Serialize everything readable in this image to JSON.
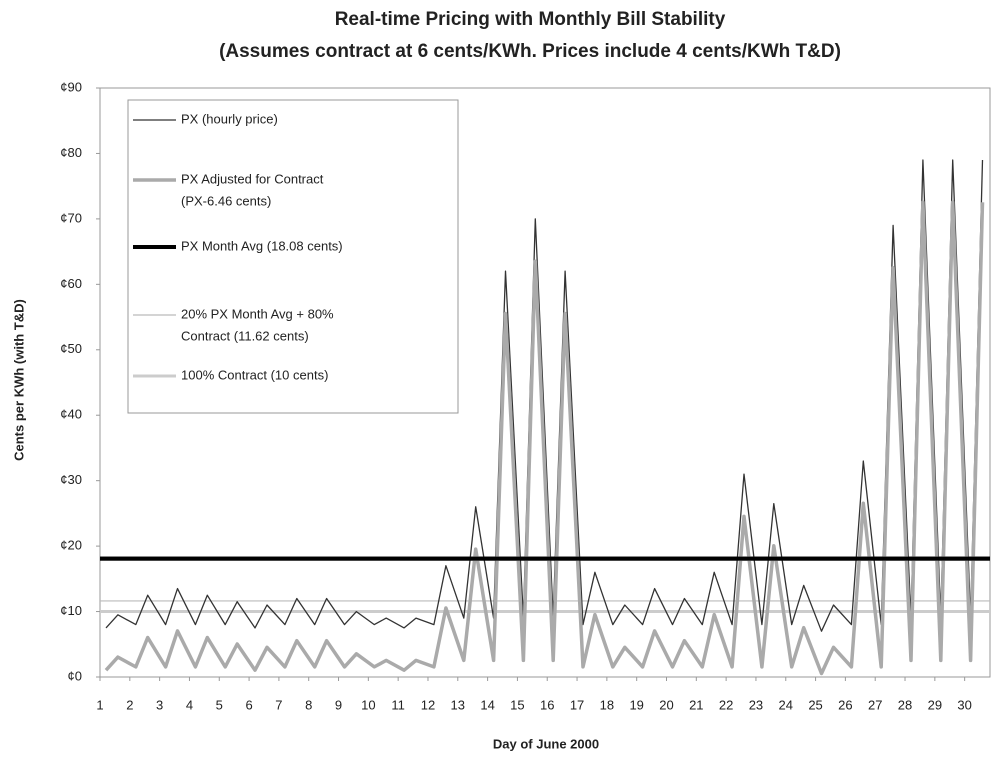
{
  "chart_data": {
    "type": "line",
    "title": [
      "Real-time Pricing with Monthly Bill Stability",
      "(Assumes contract at 6 cents/KWh.  Prices include 4 cents/KWh T&D)"
    ],
    "x_label": "Day of June 2000",
    "y_label": "Cents per KWh (with T&D)",
    "xlim": [
      1,
      30.85
    ],
    "xticks": [
      1,
      2,
      3,
      4,
      5,
      6,
      7,
      8,
      9,
      10,
      11,
      12,
      13,
      14,
      15,
      16,
      17,
      18,
      19,
      20,
      21,
      22,
      23,
      24,
      25,
      26,
      27,
      28,
      29,
      30
    ],
    "ylim": [
      0,
      90
    ],
    "yticks": [
      {
        "value": 0,
        "label": "¢0"
      },
      {
        "value": 10,
        "label": "¢10"
      },
      {
        "value": 20,
        "label": "¢20"
      },
      {
        "value": 30,
        "label": "¢30"
      },
      {
        "value": 40,
        "label": "¢40"
      },
      {
        "value": 50,
        "label": "¢50"
      },
      {
        "value": 60,
        "label": "¢60"
      },
      {
        "value": 70,
        "label": "¢70"
      },
      {
        "value": 80,
        "label": "¢80"
      },
      {
        "value": 90,
        "label": "¢90"
      }
    ],
    "x": [
      1.2,
      1.6,
      2.2,
      2.6,
      3.2,
      3.6,
      4.2,
      4.6,
      5.2,
      5.6,
      6.2,
      6.6,
      7.2,
      7.6,
      8.2,
      8.6,
      9.2,
      9.6,
      10.2,
      10.6,
      11.2,
      11.6,
      12.2,
      12.6,
      13.2,
      13.6,
      14.2,
      14.6,
      15.2,
      15.6,
      16.2,
      16.6,
      17.2,
      17.6,
      18.2,
      18.6,
      19.2,
      19.6,
      20.2,
      20.6,
      21.2,
      21.6,
      22.2,
      22.6,
      23.2,
      23.6,
      24.2,
      24.6,
      25.2,
      25.6,
      26.2,
      26.6,
      27.2,
      27.6,
      28.2,
      28.6,
      29.2,
      29.6,
      30.2,
      30.6
    ],
    "series": [
      {
        "name": [
          "PX (hourly price)"
        ],
        "color": "#333333",
        "width": 1.3,
        "values": [
          7.5,
          9.5,
          8,
          12.5,
          8,
          13.5,
          8,
          12.5,
          8,
          11.5,
          7.5,
          11,
          8,
          12,
          8,
          12,
          8,
          10,
          8,
          9,
          7.5,
          9,
          8,
          17,
          9,
          26,
          9,
          62,
          9,
          70,
          9,
          62,
          8,
          16,
          8,
          11,
          8,
          13.5,
          8,
          12,
          8,
          16,
          8,
          31,
          8,
          26.5,
          8,
          14,
          7,
          11,
          8,
          33,
          8,
          69,
          9,
          79,
          9,
          79,
          9,
          79
        ]
      },
      {
        "name": [
          "PX Adjusted for Contract",
          "(PX-6.46 cents)"
        ],
        "color": "#aaaaaa",
        "width": 3.5,
        "values": [
          1.04,
          3.04,
          1.54,
          6.04,
          1.54,
          7.04,
          1.54,
          6.04,
          1.54,
          5.04,
          1.04,
          4.54,
          1.54,
          5.54,
          1.54,
          5.54,
          1.54,
          3.54,
          1.54,
          2.54,
          1.04,
          2.54,
          1.54,
          10.54,
          2.54,
          19.54,
          2.54,
          55.54,
          2.54,
          63.54,
          2.54,
          55.54,
          1.54,
          9.54,
          1.54,
          4.54,
          1.54,
          7.04,
          1.54,
          5.54,
          1.54,
          9.54,
          1.54,
          24.54,
          1.54,
          20.04,
          1.54,
          7.54,
          0.54,
          4.54,
          1.54,
          26.54,
          1.54,
          62.54,
          2.54,
          72.54,
          2.54,
          72.54,
          2.54,
          72.54
        ]
      }
    ],
    "hlines": [
      {
        "name": [
          "PX Month Avg  (18.08 cents)"
        ],
        "value": 18.08,
        "color": "#000000",
        "width": 4
      },
      {
        "name": [
          "20% PX Month Avg + 80%",
          "Contract   (11.62  cents)"
        ],
        "value": 11.62,
        "color": "#bbbbbb",
        "width": 1.2
      },
      {
        "name": [
          "100% Contract  (10 cents)"
        ],
        "value": 10,
        "color": "#cccccc",
        "width": 3
      }
    ]
  }
}
